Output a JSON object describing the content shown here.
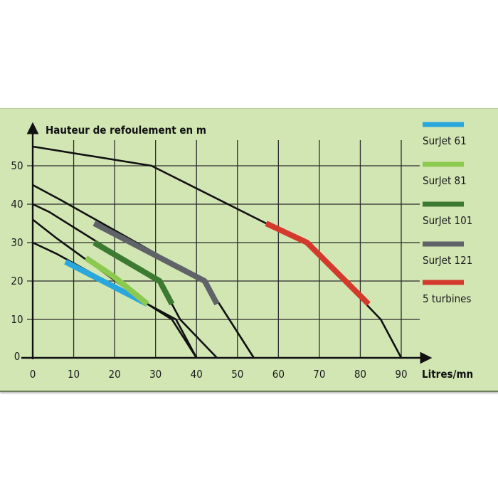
{
  "chart_data": {
    "type": "line",
    "title": "",
    "ylabel": "Hauteur de refoulement en m",
    "xlabel": "Litres/mn",
    "xlim": [
      0,
      90
    ],
    "ylim": [
      0,
      55
    ],
    "x_ticks": [
      0,
      10,
      20,
      30,
      40,
      50,
      60,
      70,
      80,
      90
    ],
    "y_ticks": [
      0,
      10,
      20,
      30,
      40,
      50
    ],
    "x_tick_labels": [
      "0",
      "10",
      "20",
      "30",
      "40",
      "50",
      "60",
      "70",
      "80",
      "90"
    ],
    "y_tick_labels": [
      "0",
      "10",
      "20",
      "30",
      "40",
      "50"
    ],
    "grid": true,
    "legend_position": "right",
    "series": [
      {
        "name": "SurJet 61",
        "color": "#2aa7dc",
        "curve": [
          [
            0,
            30
          ],
          [
            6,
            27
          ],
          [
            28,
            14
          ],
          [
            34,
            10
          ],
          [
            40,
            0
          ]
        ],
        "highlight": [
          [
            8,
            25
          ],
          [
            28,
            14
          ]
        ]
      },
      {
        "name": "SurJet 81",
        "color": "#8cc94f",
        "curve": [
          [
            0,
            36
          ],
          [
            6,
            31
          ],
          [
            28,
            14
          ],
          [
            35,
            10
          ],
          [
            40,
            0
          ]
        ],
        "highlight": [
          [
            13,
            26
          ],
          [
            20,
            21
          ],
          [
            28,
            14
          ]
        ]
      },
      {
        "name": "SurJet 101",
        "color": "#3b7a30",
        "curve": [
          [
            0,
            40
          ],
          [
            4,
            38
          ],
          [
            31,
            20
          ],
          [
            36,
            10
          ],
          [
            45,
            0
          ]
        ],
        "highlight": [
          [
            15,
            30
          ],
          [
            31,
            20
          ],
          [
            34,
            14
          ]
        ]
      },
      {
        "name": "SurJet 121",
        "color": "#5f6368",
        "curve": [
          [
            0,
            45
          ],
          [
            7,
            41
          ],
          [
            42,
            20
          ],
          [
            48,
            10
          ],
          [
            54,
            0
          ]
        ],
        "highlight": [
          [
            15,
            35
          ],
          [
            42,
            20
          ],
          [
            45,
            14
          ]
        ]
      },
      {
        "name": "5 turbines",
        "color": "#d33a2c",
        "curve": [
          [
            0,
            55
          ],
          [
            29,
            50
          ],
          [
            57,
            35
          ],
          [
            67,
            30
          ],
          [
            85,
            10
          ],
          [
            90,
            0
          ]
        ],
        "highlight": [
          [
            57,
            35
          ],
          [
            67,
            30
          ],
          [
            82,
            14
          ]
        ]
      }
    ]
  }
}
